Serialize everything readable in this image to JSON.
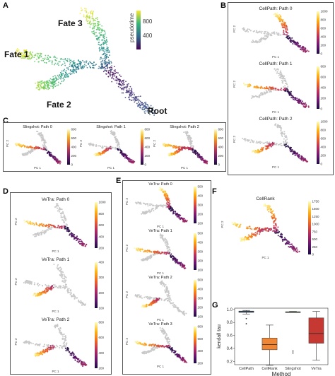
{
  "figure": {
    "panels": {
      "A": {
        "label": "A",
        "fates": [
          "Fate 3",
          "Fate 1",
          "Fate 2",
          "Root"
        ],
        "colorbar_title": "pseudotime",
        "ticks": [
          "800",
          "400"
        ]
      },
      "B": {
        "label": "B",
        "subplots": [
          {
            "title": "CellPath: Path 0",
            "ticks": [
              "1000",
              "800",
              "600",
              "400",
              "200",
              "0"
            ]
          },
          {
            "title": "CellPath: Path 1",
            "ticks": [
              "800",
              "600",
              "400",
              "200",
              "0"
            ]
          },
          {
            "title": "CellPath: Path 2",
            "ticks": [
              "1000",
              "800",
              "600",
              "400",
              "200",
              "0"
            ]
          }
        ]
      },
      "C": {
        "label": "C",
        "subplots": [
          {
            "title": "Slingshot: Path 0",
            "ticks": [
              "800",
              "600",
              "400",
              "200",
              "0"
            ]
          },
          {
            "title": "Slingshot: Path 1",
            "ticks": [
              "800",
              "600",
              "400",
              "200",
              "0"
            ]
          },
          {
            "title": "Slingshot: Path 2",
            "ticks": [
              "800",
              "600",
              "400",
              "200",
              "0"
            ]
          }
        ]
      },
      "D": {
        "label": "D",
        "subplots": [
          {
            "title": "VeTra: Path 0",
            "ticks": [
              "1000",
              "800",
              "600",
              "400",
              "200"
            ]
          },
          {
            "title": "VeTra: Path 1",
            "ticks": [
              "400",
              "300",
              "200",
              "100"
            ]
          },
          {
            "title": "VeTra: Path 2",
            "ticks": [
              "800",
              "600",
              "400",
              "200"
            ]
          }
        ]
      },
      "E": {
        "label": "E",
        "subplots": [
          {
            "title": "VeTra: Path 0",
            "ticks": [
              "500",
              "400",
              "300",
              "200",
              "100"
            ]
          },
          {
            "title": "VeTra: Path 1",
            "ticks": [
              "500",
              "400",
              "300",
              "200",
              "100"
            ]
          },
          {
            "title": "VeTra: Path 2",
            "ticks": [
              "500",
              "400",
              "300",
              "200",
              "100"
            ]
          },
          {
            "title": "VeTra: Path 3",
            "ticks": [
              "800",
              "600",
              "400",
              "200"
            ]
          }
        ]
      },
      "F": {
        "label": "F",
        "title": "CellRank",
        "ticks": [
          "1750",
          "1500",
          "1250",
          "1000",
          "750",
          "500",
          "250",
          "0"
        ]
      },
      "G": {
        "label": "G"
      }
    },
    "axes": {
      "pc1": "PC 1",
      "pc2": "PC 2"
    },
    "colors": {
      "inferno_low": "#1b0c41",
      "inferno_mid": "#b52f5e",
      "inferno_hi": "#fcfdbf",
      "viridis_low": "#440154",
      "viridis_hi": "#fde725",
      "grey": "#bdbdbd"
    }
  },
  "chart_data": {
    "type": "box",
    "xlabel": "Method",
    "ylabel": "kendall tau",
    "categories": [
      "CellPath",
      "CellRank",
      "Slingshot",
      "VeTra"
    ],
    "yticks": [
      "1.0",
      "0.8",
      "0.6",
      "0.4",
      "0.2"
    ],
    "ylim": [
      0.15,
      1.02
    ],
    "boxes": [
      {
        "name": "CellPath",
        "q1": 0.955,
        "median": 0.965,
        "q3": 0.975,
        "low": 0.93,
        "high": 0.985,
        "outliers": [
          0.86,
          0.78
        ],
        "color": "#3b76af"
      },
      {
        "name": "CellRank",
        "q1": 0.38,
        "median": 0.46,
        "q3": 0.56,
        "low": 0.14,
        "high": 0.76,
        "outliers": [],
        "color": "#ee8635"
      },
      {
        "name": "Slingshot",
        "q1": 0.955,
        "median": 0.96,
        "q3": 0.965,
        "low": 0.955,
        "high": 0.97,
        "outliers": [
          0.36,
          0.33
        ],
        "color": "#519e3e"
      },
      {
        "name": "VeTra",
        "q1": 0.48,
        "median": 0.63,
        "q3": 0.87,
        "low": 0.22,
        "high": 0.97,
        "outliers": [],
        "color": "#c53932"
      }
    ]
  }
}
